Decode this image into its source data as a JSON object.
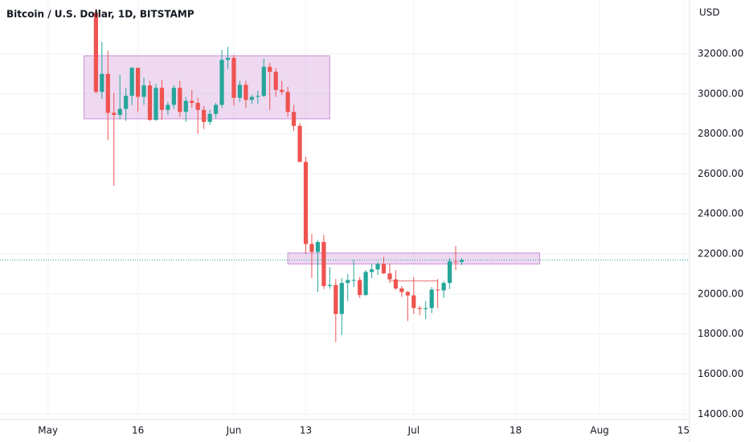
{
  "chart_data": {
    "type": "candlestick",
    "title": "Bitcoin / U.S. Dollar, 1D, BITSTAMP",
    "y_axis_label": "USD",
    "up_color": "#26a69a",
    "down_color": "#ef5350",
    "xlim": [
      "Apr 23",
      "Aug 16"
    ],
    "xticks": [
      {
        "value": "May 1",
        "label": "May"
      },
      {
        "value": "May 16",
        "label": "16"
      },
      {
        "value": "Jun 1",
        "label": "Jun"
      },
      {
        "value": "Jun 13",
        "label": "13"
      },
      {
        "value": "Jul 1",
        "label": "Jul"
      },
      {
        "value": "Jul 18",
        "label": "18"
      },
      {
        "value": "Aug 1",
        "label": "Aug"
      },
      {
        "value": "Aug 15",
        "label": "15"
      }
    ],
    "ylim": [
      13730,
      34690
    ],
    "yticks": [
      {
        "value": 14000,
        "label": "14000.00"
      },
      {
        "value": 16000,
        "label": "16000.00"
      },
      {
        "value": 18000,
        "label": "18000.00"
      },
      {
        "value": 20000,
        "label": "20000.00"
      },
      {
        "value": 22000,
        "label": "22000.00"
      },
      {
        "value": 24000,
        "label": "24000.00"
      },
      {
        "value": 26000,
        "label": "26000.00"
      },
      {
        "value": 28000,
        "label": "28000.00"
      },
      {
        "value": 30000,
        "label": "30000.00"
      },
      {
        "value": 32000,
        "label": "32000.00"
      }
    ],
    "grid": true,
    "x": [
      "May 9",
      "May 10",
      "May 11",
      "May 12",
      "May 13",
      "May 14",
      "May 15",
      "May 16",
      "May 17",
      "May 18",
      "May 19",
      "May 20",
      "May 21",
      "May 22",
      "May 23",
      "May 24",
      "May 25",
      "May 26",
      "May 27",
      "May 28",
      "May 29",
      "May 30",
      "May 31",
      "Jun 1",
      "Jun 2",
      "Jun 3",
      "Jun 4",
      "Jun 5",
      "Jun 6",
      "Jun 7",
      "Jun 8",
      "Jun 9",
      "Jun 10",
      "Jun 11",
      "Jun 12",
      "Jun 13",
      "Jun 14",
      "Jun 15",
      "Jun 16",
      "Jun 17",
      "Jun 18",
      "Jun 19",
      "Jun 20",
      "Jun 21",
      "Jun 22",
      "Jun 23",
      "Jun 24",
      "Jun 25",
      "Jun 26",
      "Jun 27",
      "Jun 28",
      "Jun 29",
      "Jun 30",
      "Jul 1",
      "Jul 2",
      "Jul 3",
      "Jul 4",
      "Jul 5",
      "Jul 6",
      "Jul 7",
      "Jul 8",
      "Jul 9"
    ],
    "open": [
      34060,
      30100,
      31000,
      29050,
      28950,
      29250,
      29900,
      31300,
      29850,
      30420,
      28700,
      30300,
      29200,
      29450,
      30300,
      29100,
      29650,
      29550,
      29200,
      28600,
      29000,
      29450,
      31700,
      31800,
      29800,
      30450,
      29700,
      29850,
      29900,
      31350,
      31100,
      30200,
      30100,
      29100,
      28400,
      26600,
      22500,
      22100,
      22600,
      20400,
      20450,
      19000,
      20550,
      20700,
      20700,
      19950,
      21100,
      21230,
      21500,
      21030,
      20730,
      20280,
      20100,
      19930,
      19300,
      19250,
      19300,
      20220,
      20180,
      20550,
      21630,
      21600
    ],
    "high": [
      34250,
      32600,
      32150,
      30050,
      30950,
      30300,
      31350,
      31300,
      30800,
      30650,
      30500,
      30700,
      29600,
      30450,
      30650,
      29850,
      30200,
      29800,
      29400,
      29200,
      29550,
      32200,
      32350,
      31950,
      30650,
      30650,
      29950,
      30150,
      31750,
      31550,
      31300,
      30650,
      30350,
      29450,
      28550,
      26850,
      23000,
      22700,
      22950,
      21350,
      20750,
      20800,
      21000,
      21700,
      20850,
      21200,
      21500,
      21600,
      21850,
      21500,
      21200,
      20400,
      20150,
      20850,
      19400,
      19650,
      20350,
      20750,
      20650,
      21800,
      22400,
      21800
    ],
    "low": [
      30030,
      29750,
      27700,
      25400,
      28750,
      28650,
      29450,
      29100,
      29450,
      28650,
      28650,
      28700,
      28950,
      29250,
      28850,
      28600,
      29300,
      28000,
      28250,
      28450,
      28800,
      29300,
      31250,
      29400,
      29600,
      29300,
      29500,
      29500,
      29850,
      29200,
      29850,
      29950,
      28850,
      28150,
      26600,
      22000,
      20800,
      20100,
      20250,
      20250,
      17600,
      17950,
      19650,
      20350,
      19800,
      19900,
      20800,
      20950,
      21000,
      20550,
      20200,
      19850,
      18650,
      19000,
      18950,
      18750,
      19050,
      19300,
      19800,
      20250,
      21200,
      21450
    ],
    "close": [
      30100,
      31000,
      29050,
      28950,
      29250,
      29900,
      31300,
      29850,
      30420,
      28700,
      30300,
      29200,
      29450,
      30300,
      29100,
      29650,
      29550,
      29200,
      28600,
      29000,
      29450,
      31700,
      31800,
      29800,
      30450,
      29700,
      29850,
      29900,
      31350,
      31100,
      30200,
      30100,
      29100,
      28400,
      26600,
      22500,
      22100,
      22600,
      20400,
      20450,
      19000,
      20550,
      20700,
      20700,
      19950,
      21100,
      21230,
      21500,
      21030,
      20730,
      20280,
      20100,
      19930,
      19300,
      19250,
      19300,
      20220,
      20180,
      20550,
      21630,
      21600,
      21700
    ],
    "zones": [
      {
        "x": [
          "May 7",
          "Jun 17"
        ],
        "y": [
          28750,
          31900
        ],
        "color": "#ce93d8"
      },
      {
        "x": [
          "Jun 10",
          "Jul 22"
        ],
        "y": [
          21500,
          22050
        ],
        "color": "#ce93d8"
      }
    ],
    "levels": [
      {
        "x": [
          "Jun 27",
          "Jul 5"
        ],
        "value": 20650,
        "color": "#e57373"
      }
    ]
  }
}
